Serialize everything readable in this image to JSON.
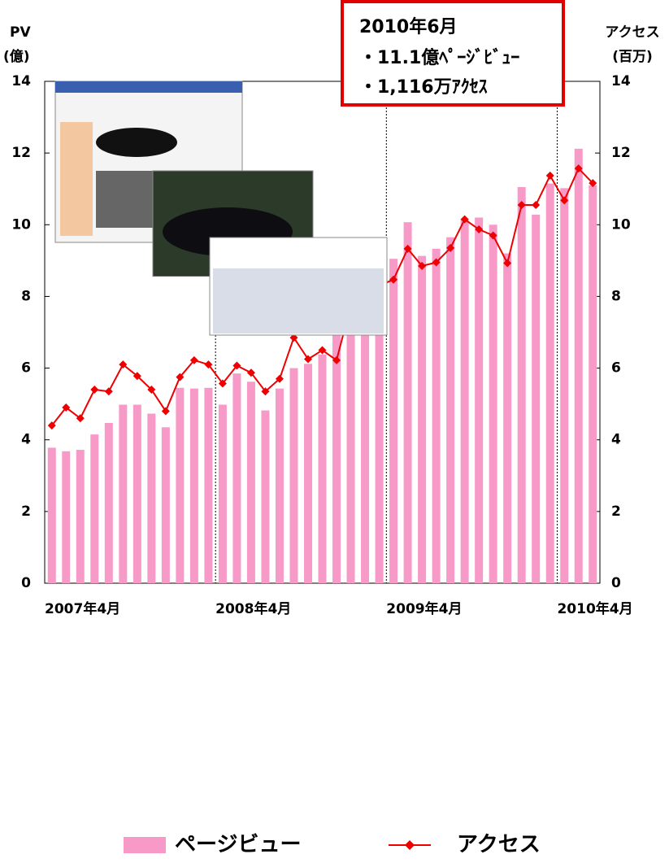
{
  "chart_data": {
    "type": "bar_line",
    "annotation": [
      "2010年6月",
      "・11.1億ﾍﾟｰｼﾞﾋﾞｭｰ",
      "・1,116万ｱｸｾｽ"
    ],
    "y_title": [
      "PV",
      "(億)"
    ],
    "y2_title": [
      "アクセス",
      "(百万)"
    ],
    "categories": [
      "2007年4月",
      null,
      null,
      null,
      null,
      null,
      null,
      null,
      null,
      null,
      null,
      null,
      "2008年4月",
      null,
      null,
      null,
      null,
      null,
      null,
      null,
      null,
      null,
      null,
      null,
      "2009年4月",
      null,
      null,
      null,
      null,
      null,
      null,
      null,
      null,
      null,
      null,
      null,
      "2010年4月",
      null,
      null
    ],
    "series": [
      {
        "name": "ページビュー",
        "color": "#f79ac8",
        "values": [
          3.78,
          3.68,
          3.72,
          4.15,
          4.47,
          4.98,
          4.98,
          4.73,
          4.35,
          5.45,
          5.43,
          5.45,
          4.98,
          5.85,
          5.62,
          4.82,
          5.43,
          6.0,
          6.12,
          6.38,
          7.12,
          7.55,
          8.25,
          8.8,
          9.05,
          10.07,
          9.13,
          9.33,
          9.65,
          10.17,
          10.2,
          10.0,
          9.2,
          11.05,
          10.28,
          11.15,
          11.02,
          12.12,
          11.1
        ]
      },
      {
        "name": "アクセス",
        "color": "#ee0000",
        "axis": "y2",
        "values": [
          4.4,
          4.9,
          4.6,
          5.4,
          5.35,
          6.1,
          5.78,
          5.4,
          4.8,
          5.75,
          6.22,
          6.1,
          5.57,
          6.07,
          5.87,
          5.35,
          5.7,
          6.85,
          6.25,
          6.5,
          6.22,
          7.75,
          8.27,
          8.3,
          8.47,
          9.33,
          8.85,
          8.95,
          9.35,
          10.15,
          9.87,
          9.7,
          8.93,
          10.55,
          10.55,
          11.37,
          10.68,
          11.57,
          11.16
        ]
      }
    ],
    "ylim": [
      0,
      14
    ],
    "yticks": [
      0,
      2,
      4,
      6,
      8,
      10,
      12,
      14
    ],
    "y2lim": [
      0,
      14
    ],
    "y2ticks": [
      0,
      2,
      4,
      6,
      8,
      10,
      12,
      14
    ]
  }
}
